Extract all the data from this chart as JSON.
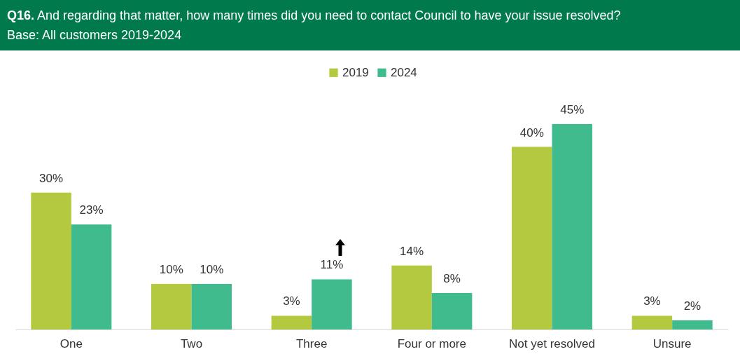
{
  "chart_data": {
    "type": "bar",
    "title": "Q16. And regarding that matter, how many times did you need to contact Council to have your issue resolved?",
    "subtitle": "Base: All customers 2019-2024",
    "categories": [
      "One",
      "Two",
      "Three",
      "Four or more",
      "Not yet resolved",
      "Unsure"
    ],
    "series": [
      {
        "name": "2019",
        "color": "#b4c940",
        "values": [
          30,
          10,
          3,
          14,
          40,
          3
        ],
        "value_labels": [
          "30%",
          "10%",
          "3%",
          "14%",
          "40%",
          "3%"
        ]
      },
      {
        "name": "2024",
        "color": "#3fbb8e",
        "values": [
          23,
          10,
          11,
          8,
          45,
          2
        ],
        "value_labels": [
          "23%",
          "10%",
          "11%",
          "8%",
          "45%",
          "2%"
        ]
      }
    ],
    "legend": "top",
    "grid": false
  }
}
